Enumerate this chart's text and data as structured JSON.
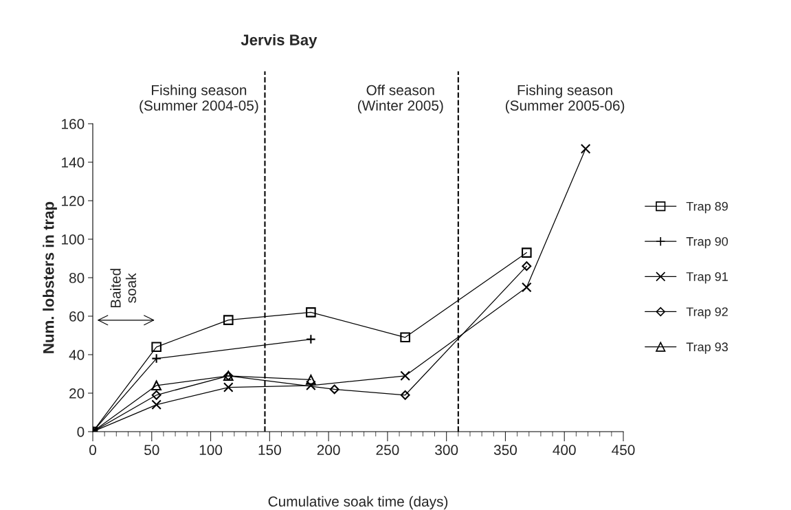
{
  "chart_data": {
    "type": "line",
    "title": "Jervis Bay",
    "xlabel": "Cumulative soak time (days)",
    "ylabel": "Num. lobsters in trap",
    "series": [
      {
        "name": "Trap 89",
        "color": "#000000",
        "marker": "square",
        "x": [
          0,
          54,
          115,
          185,
          265,
          368
        ],
        "values": [
          0,
          44,
          58,
          62,
          49,
          93
        ]
      },
      {
        "name": "Trap 90",
        "color": "#000000",
        "marker": "plus",
        "x": [
          0,
          54,
          185
        ],
        "values": [
          0,
          38,
          48
        ]
      },
      {
        "name": "Trap 91",
        "color": "#000000",
        "marker": "cross",
        "x": [
          0,
          54,
          115,
          185,
          265,
          368,
          418
        ],
        "values": [
          0,
          14,
          23,
          24,
          29,
          75,
          147
        ]
      },
      {
        "name": "Trap 92",
        "color": "#000000",
        "marker": "diamond",
        "x": [
          0,
          54,
          115,
          205,
          265,
          368
        ],
        "values": [
          0,
          19,
          29,
          22,
          19,
          86
        ]
      },
      {
        "name": "Trap 93",
        "color": "#000000",
        "marker": "triangle",
        "x": [
          0,
          54,
          115,
          185
        ],
        "values": [
          0,
          24,
          29,
          27
        ]
      }
    ],
    "xlim": [
      0,
      450
    ],
    "xticks": [
      0,
      50,
      100,
      150,
      200,
      250,
      300,
      350,
      400,
      450
    ],
    "ylim": [
      0,
      160
    ],
    "yticks": [
      0,
      20,
      40,
      60,
      80,
      100,
      120,
      140,
      160
    ],
    "ref_lines": [
      {
        "axis": "x",
        "value": 146,
        "line_style": "dashed",
        "color": "#000000"
      },
      {
        "axis": "x",
        "value": 310,
        "line_style": "dashed",
        "color": "#000000"
      }
    ],
    "annotations": [
      "Fishing season\n(Summer 2004-05)",
      "Off season\n(Winter 2005)",
      "Fishing season\n(Summer 2005-06)",
      "Baited\nsoak"
    ],
    "legend": "right",
    "grid": false,
    "line_style": "solid"
  }
}
